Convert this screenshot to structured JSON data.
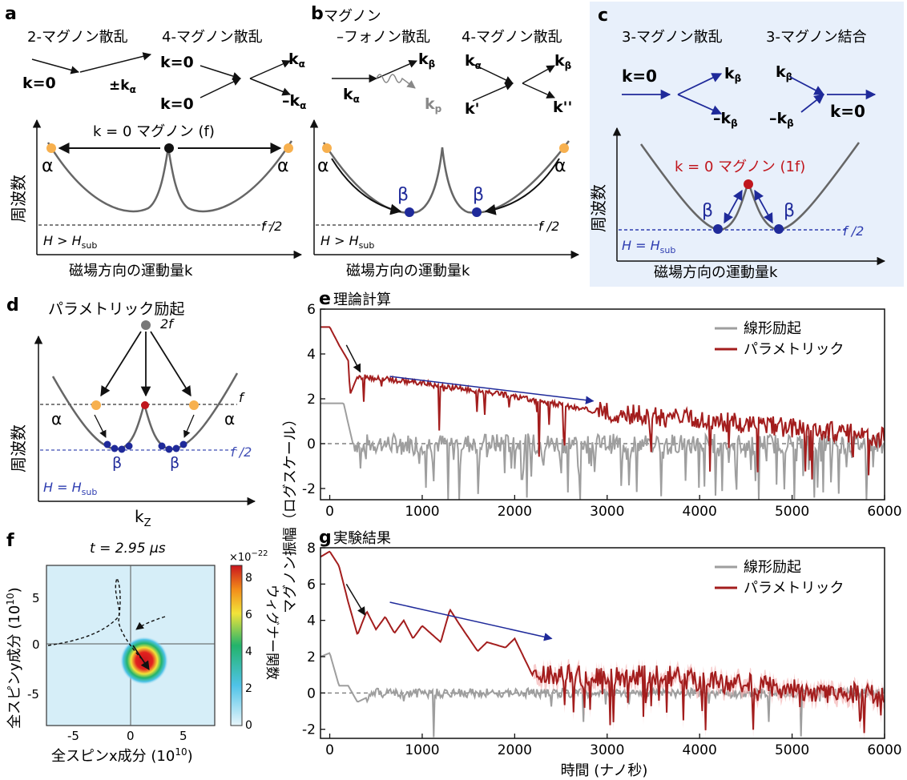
{
  "panels": {
    "a": {
      "letter": "a",
      "process1": "2-マグノン散乱",
      "process2": "4-マグノン散乱",
      "k0": "k=0",
      "pm_ka": "±k",
      "alpha_sub": "α",
      "ka": "k",
      "neg_ka": "–k",
      "k0_magnon": "k = 0 マグノン (f)",
      "alpha": "α",
      "ylabel": "周波数",
      "xlabel": "磁場方向の運動量k",
      "half_f": "f /2",
      "cond": "H > H",
      "cond_sub": "sub"
    },
    "b": {
      "letter": "b",
      "process1_line1": "マグノン",
      "process1_line2": "–フォノン散乱",
      "process2": "4-マグノン散乱",
      "kb": "k",
      "kp": "k",
      "beta_sub": "β",
      "p_sub": "p",
      "kprime": "k'",
      "kdprime": "k''",
      "alpha": "α",
      "beta": "β",
      "xlabel": "磁場方向の運動量k",
      "half_f": "f /2",
      "cond": "H > H",
      "cond_sub": "sub"
    },
    "c": {
      "letter": "c",
      "process1": "3-マグノン散乱",
      "process2": "3-マグノン結合",
      "k0": "k=0",
      "neg_kb": "–k",
      "k0_magnon": "k = 0 マグノン (1f)",
      "beta": "β",
      "ylabel": "周波数",
      "xlabel": "磁場方向の運動量k",
      "half_f": "f /2",
      "cond": "H = H",
      "cond_sub": "sub"
    },
    "d": {
      "letter": "d",
      "title": "パラメトリック励起",
      "two_f": "2f",
      "f": "f",
      "half_f": "f /2",
      "alpha": "α",
      "beta": "β",
      "ylabel": "周波数",
      "xlabel": "k",
      "xlabel_sub": "Z",
      "cond": "H = H",
      "cond_sub": "sub"
    },
    "e": {
      "letter": "e",
      "title": "理論計算"
    },
    "g": {
      "letter": "g",
      "title": "実験結果"
    },
    "f": {
      "letter": "f",
      "time_label": "t = 2.95 μs",
      "xlabel": "全スピンx成分 (10",
      "ylabel": "全スピンy成分 (10",
      "exp": "10",
      "close": ")",
      "cbar_label": "ウィグナー関数",
      "cbar_exp": "×10",
      "cbar_exp_pow": "−22"
    }
  },
  "shared": {
    "ylabel_eg": "マグノン振幅（ログスケール）",
    "xlabel_eg": "時間 (ナノ秒)"
  },
  "chart_data": [
    {
      "type": "line",
      "title": "理論計算",
      "xlabel": "時間 (ナノ秒)",
      "ylabel": "マグノン振幅（ログスケール）",
      "xlim": [
        -100,
        6000
      ],
      "ylim": [
        -2.5,
        6
      ],
      "xticks": [
        0,
        1000,
        2000,
        3000,
        4000,
        5000,
        6000
      ],
      "yticks": [
        -2,
        0,
        2,
        4,
        6
      ],
      "legend": "top-right",
      "series": [
        {
          "name": "線形励起",
          "color": "#9e9e9e",
          "x": [
            -100,
            150,
            250,
            400,
            800,
            1500,
            2500,
            3500,
            4500,
            5500,
            6000
          ],
          "y": [
            1.8,
            1.8,
            0,
            0,
            0,
            0,
            0,
            0,
            0,
            0,
            0
          ]
        },
        {
          "name": "パラメトリック",
          "color": "#a31d1d",
          "x": [
            -100,
            0,
            100,
            200,
            220,
            300,
            1000,
            2000,
            2800,
            3500,
            4500,
            5500,
            6000
          ],
          "y": [
            5.2,
            5.2,
            4.4,
            3.7,
            2.2,
            3.0,
            2.7,
            2.1,
            1.5,
            1.2,
            0.9,
            0.5,
            0.3
          ]
        }
      ]
    },
    {
      "type": "line",
      "title": "実験結果",
      "xlabel": "時間 (ナノ秒)",
      "ylabel": "マグノン振幅（ログスケール）",
      "xlim": [
        -100,
        6000
      ],
      "ylim": [
        -2.5,
        8
      ],
      "xticks": [
        0,
        1000,
        2000,
        3000,
        4000,
        5000,
        6000
      ],
      "yticks": [
        -2,
        0,
        2,
        4,
        6,
        8
      ],
      "legend": "top-right",
      "series": [
        {
          "name": "線形励起",
          "color": "#9e9e9e",
          "x": [
            -100,
            0,
            100,
            200,
            300,
            500,
            1000,
            1500,
            2000,
            2500,
            3000
          ],
          "y": [
            2.0,
            2.2,
            0.4,
            0.4,
            -0.5,
            0.0,
            0.0,
            0.0,
            0.0,
            0.0,
            0.0
          ]
        },
        {
          "name": "パラメトリック",
          "color": "#a31d1d",
          "x": [
            -100,
            0,
            100,
            200,
            300,
            400,
            500,
            600,
            700,
            800,
            900,
            1000,
            1200,
            1300,
            1400,
            1600,
            1700,
            1900,
            2000,
            2200,
            2500,
            3000,
            3500,
            4000,
            4500,
            5000,
            5500,
            6000
          ],
          "y": [
            7.5,
            7.8,
            7.0,
            5.0,
            3.2,
            4.5,
            3.5,
            4.2,
            3.3,
            4.0,
            3.0,
            3.7,
            2.8,
            4.6,
            3.8,
            2.3,
            2.8,
            2.5,
            3.0,
            0.9,
            1.0,
            0.8,
            1.0,
            0.7,
            0.5,
            0.2,
            0.0,
            0.0
          ]
        }
      ]
    }
  ]
}
